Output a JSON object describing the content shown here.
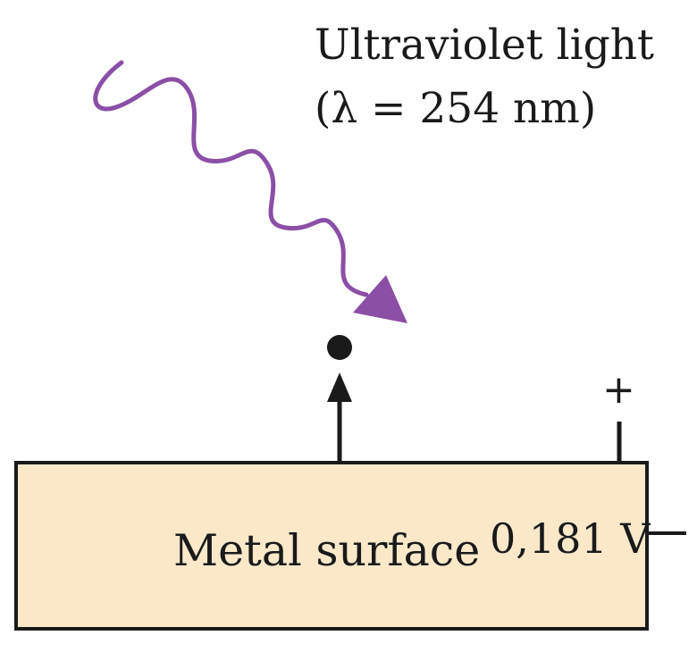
{
  "diagram": {
    "light_label_line1": "Ultraviolet light",
    "light_label_line2": "(λ = 254 nm)",
    "surface_label": "Metal surface",
    "voltage_label": "0,181 V",
    "positive_terminal": "+"
  },
  "colors": {
    "wave": "#8b4fa6",
    "surface_fill": "#fbe8c9",
    "stroke": "#1a1a1a"
  }
}
